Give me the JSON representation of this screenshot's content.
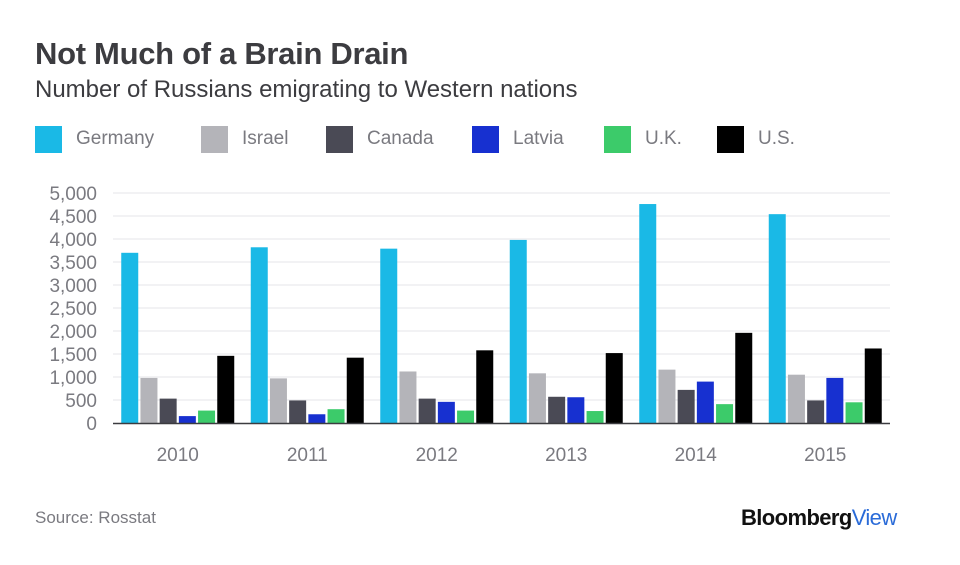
{
  "chart_data": {
    "type": "bar",
    "title": "Not Much of a Brain Drain",
    "subtitle": "Number of Russians emigrating to Western nations",
    "categories": [
      "2010",
      "2011",
      "2012",
      "2013",
      "2014",
      "2015"
    ],
    "series": [
      {
        "name": "Germany",
        "color": "#1ab9e6",
        "values": [
          3700,
          3820,
          3790,
          3980,
          4760,
          4540
        ]
      },
      {
        "name": "Israel",
        "color": "#b4b4b9",
        "values": [
          980,
          970,
          1120,
          1080,
          1160,
          1050
        ]
      },
      {
        "name": "Canada",
        "color": "#4a4a55",
        "values": [
          530,
          490,
          530,
          570,
          720,
          490
        ]
      },
      {
        "name": "Latvia",
        "color": "#1730d0",
        "values": [
          150,
          190,
          460,
          560,
          900,
          980
        ]
      },
      {
        "name": "U.K.",
        "color": "#3ccb6a",
        "values": [
          270,
          300,
          270,
          260,
          410,
          450
        ]
      },
      {
        "name": "U.S.",
        "color": "#000000",
        "values": [
          1460,
          1420,
          1580,
          1520,
          1960,
          1620
        ]
      }
    ],
    "yticks": [
      "0",
      "500",
      "1,000",
      "1,500",
      "2,000",
      "2,500",
      "3,000",
      "3,500",
      "4,000",
      "4,500",
      "5,000"
    ],
    "ylim": [
      0,
      5000
    ],
    "xlabel": "",
    "ylabel": "",
    "grid": true,
    "legend": "top"
  },
  "source": "Source: Rosstat",
  "brand": {
    "part1": "Bloomberg",
    "part2": "View"
  }
}
